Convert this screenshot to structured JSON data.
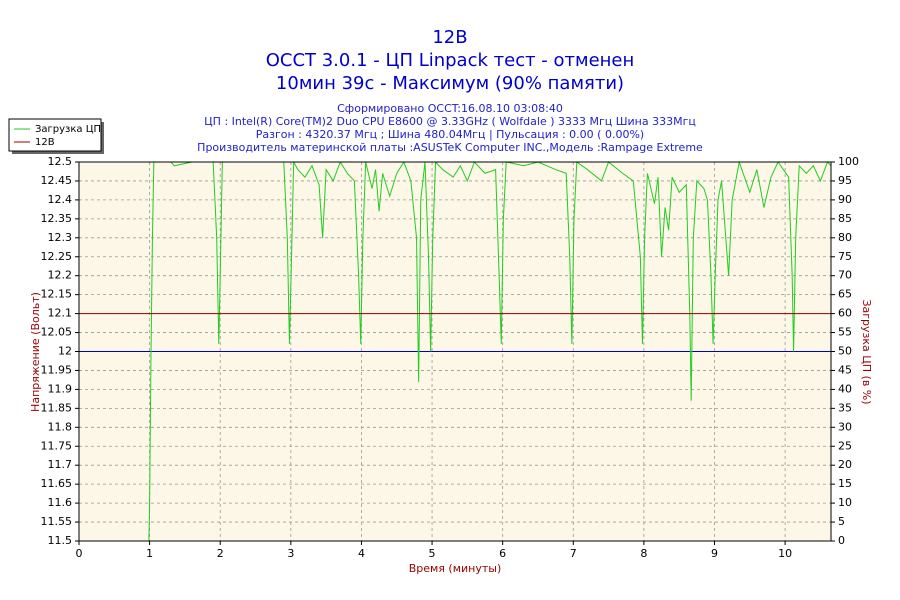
{
  "chart_data": {
    "type": "line",
    "title": "12В",
    "subtitle": "OCCT 3.0.1 - ЦП Linpack тест - отменен",
    "subtitle2": "10мин 39с - Максимум (90% памяти)",
    "info": [
      "Сформировано OCCT:16.08.10 03:08:40",
      "ЦП : Intel(R) Core(TM)2 Duo CPU E8600 @ 3.33GHz ( Wolfdale ) 3333 Мгц Шина 333Мгц",
      "Разгон : 4320.37 Мгц ; Шина 480.04Мгц | Пульсация : 0.00 ( 0.00%)",
      "Производитель материнской платы :ASUSTeK Computer INC.,Модель :Rampage Extreme"
    ],
    "xlabel": "Время (минуты)",
    "ylabel": "Напряжение (Вольт)",
    "y2label": "Загрузка ЦП (в %)",
    "xlim": [
      0,
      10.65
    ],
    "xticks": [
      0,
      1,
      2,
      3,
      4,
      5,
      6,
      7,
      8,
      9,
      10
    ],
    "ylim": [
      11.5,
      12.5
    ],
    "yticks": [
      11.5,
      11.55,
      11.6,
      11.65,
      11.7,
      11.75,
      11.8,
      11.85,
      11.9,
      11.95,
      12,
      12.05,
      12.1,
      12.15,
      12.2,
      12.25,
      12.3,
      12.35,
      12.4,
      12.45,
      12.5
    ],
    "y2lim": [
      0,
      100
    ],
    "y2ticks": [
      0,
      5,
      10,
      15,
      20,
      25,
      30,
      35,
      40,
      45,
      50,
      55,
      60,
      65,
      70,
      75,
      80,
      85,
      90,
      95,
      100
    ],
    "grid": true,
    "legend": "top-left",
    "hline": {
      "value": 12,
      "color": "#0000cc"
    },
    "series": [
      {
        "name": "Загрузка ЦП",
        "color": "#22cc22",
        "axis": "y2",
        "x": [
          0.99,
          1.0,
          1.02,
          1.04,
          1.06,
          1.3,
          1.35,
          1.6,
          1.9,
          1.95,
          1.98,
          2.0,
          2.03,
          2.9,
          2.95,
          2.98,
          3.01,
          3.04,
          3.1,
          3.2,
          3.3,
          3.4,
          3.45,
          3.5,
          3.6,
          3.7,
          3.8,
          3.9,
          3.96,
          3.99,
          4.02,
          4.06,
          4.15,
          4.2,
          4.25,
          4.3,
          4.4,
          4.5,
          4.6,
          4.7,
          4.78,
          4.81,
          4.84,
          4.9,
          4.95,
          4.98,
          5.01,
          5.05,
          5.15,
          5.3,
          5.4,
          5.5,
          5.6,
          5.75,
          5.9,
          5.95,
          5.98,
          6.01,
          6.05,
          6.3,
          6.5,
          6.75,
          6.9,
          6.95,
          6.98,
          7.01,
          7.05,
          7.2,
          7.4,
          7.5,
          7.7,
          7.85,
          7.95,
          7.98,
          8.01,
          8.05,
          8.15,
          8.2,
          8.25,
          8.3,
          8.35,
          8.4,
          8.5,
          8.6,
          8.65,
          8.67,
          8.7,
          8.75,
          8.85,
          8.9,
          8.95,
          8.98,
          9.01,
          9.05,
          9.1,
          9.2,
          9.25,
          9.35,
          9.5,
          9.6,
          9.7,
          9.8,
          9.9,
          10.05,
          10.1,
          10.12,
          10.15,
          10.2,
          10.3,
          10.4,
          10.5,
          10.6,
          10.65
        ],
        "values": [
          0,
          10,
          50,
          80,
          100,
          100,
          99,
          100,
          100,
          80,
          52,
          70,
          100,
          100,
          80,
          52,
          75,
          100,
          98,
          96,
          99,
          94,
          80,
          98,
          95,
          100,
          97,
          95,
          70,
          52,
          80,
          100,
          93,
          98,
          87,
          97,
          91,
          97,
          100,
          95,
          80,
          42,
          90,
          100,
          75,
          50,
          80,
          100,
          98,
          96,
          99,
          95,
          100,
          97,
          98,
          70,
          52,
          85,
          100,
          99,
          100,
          98,
          97,
          75,
          52,
          85,
          100,
          98,
          95,
          100,
          97,
          95,
          75,
          52,
          80,
          97,
          89,
          96,
          75,
          88,
          82,
          96,
          92,
          94,
          60,
          37,
          80,
          95,
          93,
          90,
          70,
          52,
          70,
          90,
          95,
          70,
          90,
          100,
          92,
          98,
          88,
          96,
          100,
          96,
          70,
          50,
          80,
          99,
          97,
          99,
          95,
          100,
          99
        ]
      },
      {
        "name": "12В",
        "color": "#990000",
        "axis": "y",
        "x": [
          0,
          10.65
        ],
        "values": [
          12.1,
          12.1
        ]
      }
    ]
  }
}
